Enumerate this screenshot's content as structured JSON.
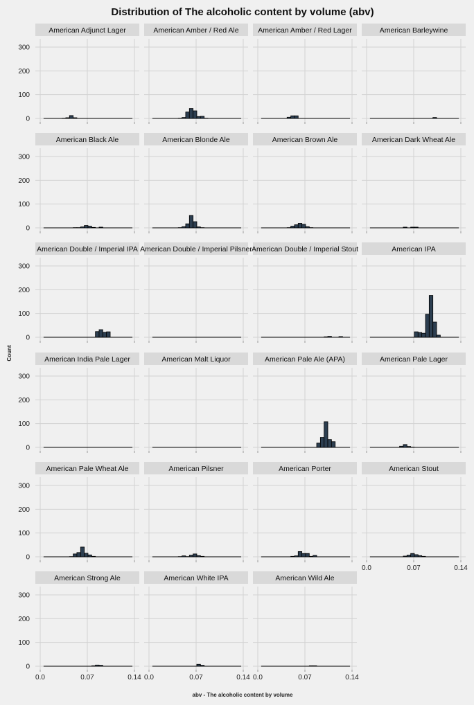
{
  "chart_data": {
    "type": "bar",
    "chart_style": "faceted-histogram",
    "title": "Distribution of The alcoholic content by volume (abv)",
    "xlabel": "abv - The alcoholic content by volume",
    "ylabel": "Count",
    "xlim": [
      0.0,
      0.14
    ],
    "ylim": [
      0,
      300
    ],
    "x_ticks": [
      "0.0",
      "0.07",
      "0.14"
    ],
    "y_ticks": [
      "0",
      "100",
      "200",
      "300"
    ],
    "grid": true,
    "bar_color": "#2c3e50",
    "bin_edges": [
      0.005,
      0.0105,
      0.016,
      0.0215,
      0.027,
      0.0325,
      0.038,
      0.0435,
      0.049,
      0.0545,
      0.06,
      0.0655,
      0.071,
      0.0765,
      0.082,
      0.0875,
      0.093,
      0.0985,
      0.104,
      0.1095,
      0.115,
      0.1205,
      0.126,
      0.1315,
      0.137
    ],
    "facets": [
      {
        "name": "American Adjunct Lager",
        "counts": [
          0,
          0,
          0,
          0,
          0,
          1,
          3,
          12,
          3,
          0,
          0,
          0,
          0,
          0,
          0,
          0,
          0,
          0,
          0,
          0,
          0,
          0,
          0,
          0
        ]
      },
      {
        "name": "American Amber / Red Ale",
        "counts": [
          0,
          0,
          0,
          0,
          0,
          0,
          0,
          1,
          4,
          27,
          42,
          32,
          8,
          9,
          1,
          0,
          0,
          0,
          0,
          0,
          0,
          0,
          0,
          0
        ]
      },
      {
        "name": "American Amber / Red Lager",
        "counts": [
          0,
          0,
          0,
          0,
          0,
          0,
          0,
          5,
          11,
          11,
          0,
          0,
          0,
          0,
          0,
          0,
          0,
          0,
          0,
          0,
          0,
          0,
          0,
          0
        ]
      },
      {
        "name": "American Barleywine",
        "counts": [
          0,
          0,
          0,
          0,
          0,
          0,
          0,
          0,
          0,
          0,
          0,
          0,
          0,
          0,
          0,
          0,
          0,
          4,
          0,
          0,
          0,
          0,
          0,
          0
        ]
      },
      {
        "name": "American Black Ale",
        "counts": [
          0,
          0,
          0,
          0,
          0,
          0,
          0,
          0,
          1,
          1,
          4,
          10,
          7,
          2,
          0,
          3,
          0,
          0,
          0,
          0,
          0,
          0,
          0,
          0
        ]
      },
      {
        "name": "American Blonde Ale",
        "counts": [
          0,
          0,
          0,
          0,
          0,
          0,
          0,
          1,
          5,
          17,
          52,
          26,
          4,
          1,
          0,
          0,
          0,
          0,
          0,
          0,
          0,
          0,
          0,
          0
        ]
      },
      {
        "name": "American Brown Ale",
        "counts": [
          0,
          0,
          0,
          0,
          0,
          0,
          0,
          1,
          7,
          13,
          19,
          15,
          5,
          1,
          0,
          0,
          0,
          0,
          0,
          0,
          0,
          0,
          0,
          0
        ]
      },
      {
        "name": "American Dark Wheat Ale",
        "counts": [
          0,
          0,
          0,
          0,
          0,
          0,
          0,
          0,
          0,
          3,
          0,
          3,
          3,
          0,
          0,
          0,
          0,
          0,
          0,
          0,
          0,
          0,
          0,
          0
        ]
      },
      {
        "name": "American Double / Imperial IPA",
        "counts": [
          0,
          0,
          0,
          0,
          0,
          0,
          0,
          0,
          0,
          0,
          0,
          0,
          0,
          0,
          24,
          32,
          21,
          23,
          0,
          0,
          0,
          0,
          0,
          0
        ]
      },
      {
        "name": "American Double / Imperial Pilsner",
        "counts": [
          0,
          0,
          0,
          0,
          0,
          0,
          0,
          0,
          0,
          0,
          0,
          0,
          0,
          0,
          0,
          0,
          0,
          0,
          0,
          0,
          0,
          0,
          0,
          0
        ]
      },
      {
        "name": "American Double / Imperial Stout",
        "counts": [
          0,
          0,
          0,
          0,
          0,
          0,
          0,
          0,
          0,
          0,
          0,
          0,
          0,
          0,
          0,
          0,
          0,
          2,
          4,
          0,
          0,
          3,
          0,
          0
        ]
      },
      {
        "name": "American IPA",
        "counts": [
          0,
          0,
          0,
          0,
          0,
          0,
          0,
          0,
          0,
          0,
          0,
          0,
          23,
          20,
          17,
          97,
          176,
          64,
          9,
          0,
          0,
          0,
          0,
          0
        ]
      },
      {
        "name": "American India Pale Lager",
        "counts": [
          0,
          0,
          0,
          0,
          0,
          0,
          0,
          0,
          0,
          0,
          0,
          0,
          0,
          0,
          0,
          0,
          0,
          0,
          0,
          0,
          0,
          0,
          0,
          0
        ]
      },
      {
        "name": "American Malt Liquor",
        "counts": [
          0,
          0,
          0,
          0,
          0,
          0,
          0,
          0,
          0,
          0,
          0,
          0,
          0,
          0,
          0,
          0,
          0,
          0,
          0,
          0,
          0,
          0,
          0,
          0
        ]
      },
      {
        "name": "American Pale Ale (APA)",
        "counts": [
          0,
          0,
          0,
          0,
          0,
          0,
          0,
          0,
          0,
          0,
          0,
          0,
          0,
          0,
          0,
          18,
          42,
          108,
          33,
          24,
          0,
          0,
          0,
          0
        ]
      },
      {
        "name": "American Pale Lager",
        "counts": [
          0,
          0,
          0,
          0,
          0,
          0,
          0,
          0,
          5,
          12,
          4,
          1,
          0,
          0,
          0,
          0,
          0,
          0,
          0,
          0,
          0,
          0,
          0,
          0
        ]
      },
      {
        "name": "American Pale Wheat Ale",
        "counts": [
          0,
          0,
          0,
          0,
          0,
          0,
          0,
          1,
          12,
          18,
          41,
          15,
          8,
          2,
          0,
          0,
          0,
          0,
          0,
          0,
          0,
          0,
          0,
          0
        ]
      },
      {
        "name": "American Pilsner",
        "counts": [
          0,
          0,
          0,
          0,
          0,
          0,
          0,
          1,
          4,
          1,
          7,
          12,
          5,
          2,
          0,
          0,
          0,
          0,
          0,
          0,
          0,
          0,
          0,
          0
        ]
      },
      {
        "name": "American Porter",
        "counts": [
          0,
          0,
          0,
          0,
          0,
          0,
          0,
          0,
          2,
          4,
          22,
          14,
          14,
          2,
          6,
          0,
          0,
          0,
          0,
          0,
          0,
          0,
          0,
          0
        ]
      },
      {
        "name": "American Stout",
        "counts": [
          0,
          0,
          0,
          0,
          0,
          0,
          0,
          0,
          0,
          3,
          7,
          14,
          9,
          5,
          2,
          0,
          0,
          0,
          0,
          0,
          0,
          0,
          0,
          0
        ]
      },
      {
        "name": "American Strong Ale",
        "counts": [
          0,
          0,
          0,
          0,
          0,
          0,
          0,
          0,
          0,
          0,
          0,
          0,
          0,
          2,
          5,
          4,
          0,
          0,
          0,
          0,
          0,
          0,
          0,
          0
        ]
      },
      {
        "name": "American White IPA",
        "counts": [
          0,
          0,
          0,
          0,
          0,
          0,
          0,
          0,
          0,
          0,
          0,
          0,
          8,
          4,
          0,
          0,
          0,
          0,
          0,
          0,
          0,
          0,
          0,
          0
        ]
      },
      {
        "name": "American Wild Ale",
        "counts": [
          0,
          0,
          0,
          0,
          0,
          0,
          0,
          0,
          0,
          0,
          0,
          0,
          0,
          2,
          2,
          0,
          0,
          0,
          0,
          0,
          0,
          0,
          0,
          0
        ]
      }
    ]
  }
}
